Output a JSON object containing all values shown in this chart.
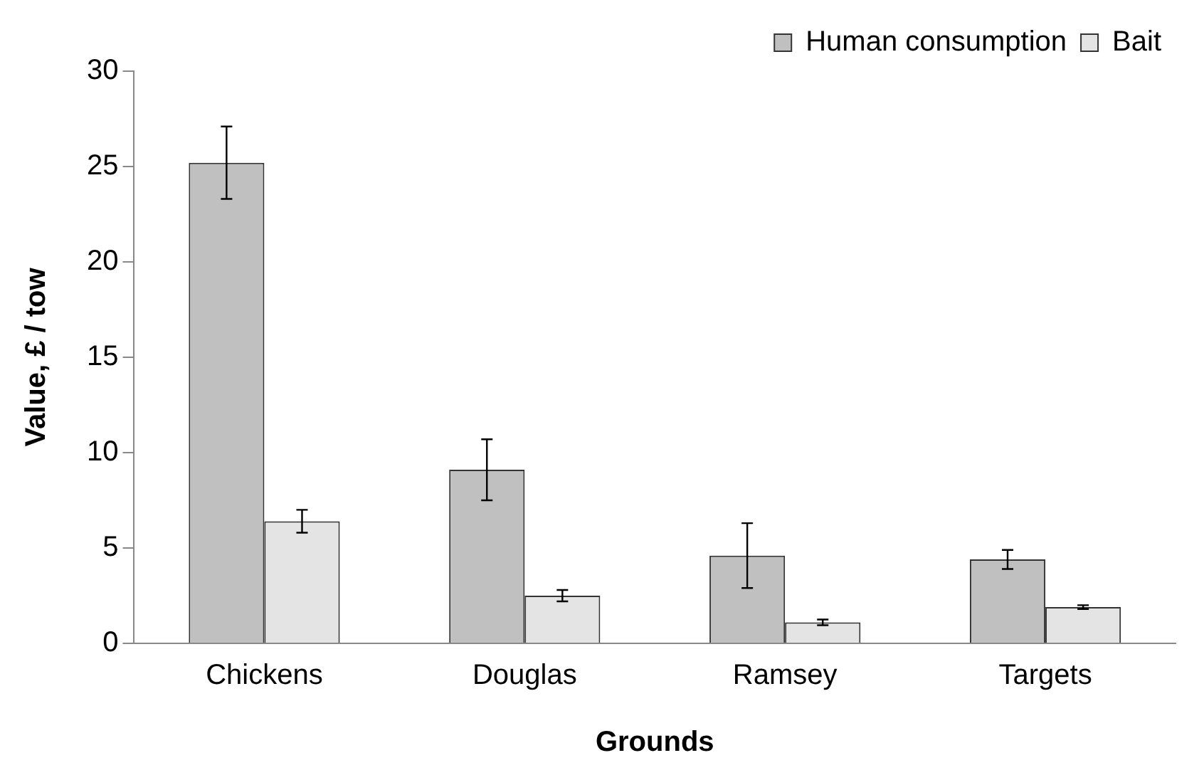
{
  "chart_data": {
    "type": "bar",
    "xlabel": "Grounds",
    "ylabel": "Value, £ / tow",
    "categories": [
      "Chickens",
      "Douglas",
      "Ramsey",
      "Targets"
    ],
    "series": [
      {
        "name": "Human consumption",
        "color": "#c0c0c0",
        "values": [
          25.2,
          9.1,
          4.6,
          4.4
        ],
        "errors": [
          1.9,
          1.6,
          1.7,
          0.5
        ]
      },
      {
        "name": "Bait",
        "color": "#e4e4e4",
        "values": [
          6.4,
          2.5,
          1.1,
          1.9
        ],
        "errors": [
          0.6,
          0.3,
          0.15,
          0.1
        ]
      }
    ],
    "ylim": [
      0,
      30
    ],
    "yticks": [
      0,
      5,
      10,
      15,
      20,
      25,
      30
    ],
    "grid": false,
    "legend": "top right"
  }
}
